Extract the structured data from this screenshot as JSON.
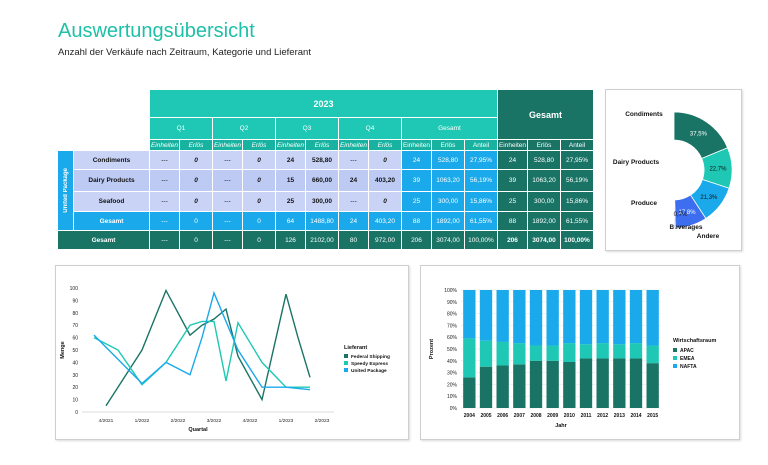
{
  "header": {
    "title": "Auswertungsübersicht",
    "subtitle": "Anzahl der Verkäufe nach Zeitraum, Kategorie und Lieferant"
  },
  "pivot": {
    "year": "2023",
    "grand_total_header": "Gesamt",
    "quarters": [
      "Q1",
      "Q2",
      "Q3",
      "Q4"
    ],
    "total_col_header": "Gesamt",
    "sub_headers": {
      "units": "Einheiten",
      "revenue": "Erlös",
      "share": "Anteil"
    },
    "supplier_group": "United Package",
    "rows": [
      {
        "name": "Condiments",
        "cells": [
          "---",
          "0",
          "---",
          "0",
          "24",
          "528,80",
          "---",
          "0",
          "24",
          "528,80",
          "27,95%",
          "24",
          "528,80",
          "27,95%"
        ]
      },
      {
        "name": "Dairy Products",
        "cells": [
          "---",
          "0",
          "---",
          "0",
          "15",
          "660,00",
          "24",
          "403,20",
          "39",
          "1063,20",
          "56,19%",
          "39",
          "1063,20",
          "56,19%"
        ]
      },
      {
        "name": "Seafood",
        "cells": [
          "---",
          "0",
          "---",
          "0",
          "25",
          "300,00",
          "---",
          "0",
          "25",
          "300,00",
          "15,86%",
          "25",
          "300,00",
          "15,86%"
        ]
      }
    ],
    "subtotal": {
      "name": "Gesamt",
      "cells": [
        "---",
        "0",
        "---",
        "0",
        "64",
        "1488,80",
        "24",
        "403,20",
        "88",
        "1892,00",
        "61,55%",
        "88",
        "1892,00",
        "61,55%"
      ]
    },
    "total": {
      "name": "Gesamt",
      "cells": [
        "---",
        "0",
        "---",
        "0",
        "126",
        "2102,00",
        "80",
        "972,00",
        "206",
        "3074,00",
        "100,00%",
        "206",
        "3074,00",
        "100,00%"
      ]
    }
  },
  "chart_data": [
    {
      "type": "pie",
      "subtype": "half-donut",
      "labels": [
        "Condiments",
        "Dairy Products",
        "Produce",
        "Beverages",
        "Andere"
      ],
      "values": [
        37.5,
        22.7,
        21.3,
        17.8,
        0.7
      ],
      "value_labels": [
        "37,5%",
        "22,7%",
        "21,3%",
        "17,8%",
        "0,7%"
      ],
      "colors": [
        "#1a7466",
        "#1ec8b4",
        "#1aa9ea",
        "#3d6ef0",
        "#b8c4f5"
      ]
    },
    {
      "type": "line",
      "xlabel": "Quartal",
      "ylabel": "Menge",
      "ylim": [
        0,
        100
      ],
      "yticks": [
        0,
        10,
        20,
        30,
        40,
        50,
        60,
        70,
        80,
        90,
        100
      ],
      "x_tick_labels": [
        "4/2021",
        "1/2022",
        "2/2022",
        "3/2022",
        "4/2022",
        "1/2023",
        "2/2023"
      ],
      "legend_title": "Lieferant",
      "legend_position": "right",
      "series": [
        {
          "name": "Federal Shipping",
          "color": "#1a7466",
          "x": [
            4.5,
            6,
            7,
            8,
            8.5,
            9,
            9.5,
            10,
            11,
            12,
            12.5,
            13
          ],
          "values": [
            5,
            50,
            98,
            62,
            70,
            75,
            83,
            45,
            10,
            95,
            60,
            28
          ]
        },
        {
          "name": "Speedy Express",
          "color": "#1ec8b4",
          "x": [
            4,
            5,
            6,
            7,
            8,
            8.5,
            9,
            9.5,
            10,
            11,
            12,
            13
          ],
          "values": [
            60,
            50,
            22,
            40,
            70,
            73,
            73,
            25,
            72,
            40,
            20,
            20
          ]
        },
        {
          "name": "United Package",
          "color": "#1aa9ea",
          "x": [
            4,
            6,
            7,
            8,
            8.5,
            9,
            10,
            11,
            12,
            13
          ],
          "values": [
            62,
            23,
            40,
            30,
            60,
            96,
            50,
            20,
            20,
            18
          ]
        }
      ]
    },
    {
      "type": "bar",
      "stacked": "percent",
      "xlabel": "Jahr",
      "ylabel": "Prozent",
      "yticks": [
        "0%",
        "10%",
        "20%",
        "30%",
        "40%",
        "50%",
        "60%",
        "70%",
        "80%",
        "90%",
        "100%"
      ],
      "categories": [
        "2004",
        "2005",
        "2006",
        "2007",
        "2008",
        "2009",
        "2010",
        "2011",
        "2012",
        "2013",
        "2014",
        "2015"
      ],
      "legend_title": "Wirtschaftsraum",
      "legend_position": "right",
      "series": [
        {
          "name": "APAC",
          "color": "#1a7466",
          "values": [
            26,
            35,
            36,
            37,
            40,
            40,
            39,
            42,
            42,
            42,
            42,
            38
          ]
        },
        {
          "name": "EMEA",
          "color": "#1ec8b4",
          "values": [
            33,
            22,
            20,
            18,
            13,
            13,
            16,
            12,
            13,
            12,
            13,
            15
          ]
        },
        {
          "name": "NAFTA",
          "color": "#1aa9ea",
          "values": [
            41,
            43,
            44,
            45,
            47,
            47,
            45,
            46,
            45,
            46,
            45,
            47
          ]
        }
      ]
    }
  ]
}
